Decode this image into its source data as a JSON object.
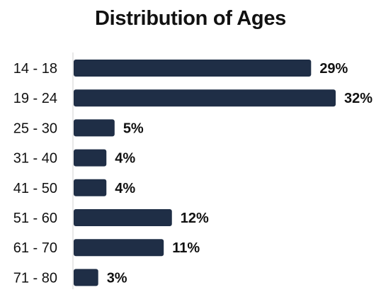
{
  "chart_data": {
    "type": "bar",
    "orientation": "horizontal",
    "title": "Distribution of Ages",
    "xlabel": "",
    "ylabel": "",
    "categories": [
      "14 - 18",
      "19 - 24",
      "25 - 30",
      "31 - 40",
      "41 - 50",
      "51 - 60",
      "61 - 70",
      "71 - 80"
    ],
    "values": [
      29,
      32,
      5,
      4,
      4,
      12,
      11,
      3
    ],
    "value_labels": [
      "29%",
      "32%",
      "5%",
      "4%",
      "4%",
      "12%",
      "11%",
      "3%"
    ],
    "xlim": [
      0,
      32
    ],
    "grid": false,
    "legend": "none",
    "bar_color": "#1f2e46"
  }
}
